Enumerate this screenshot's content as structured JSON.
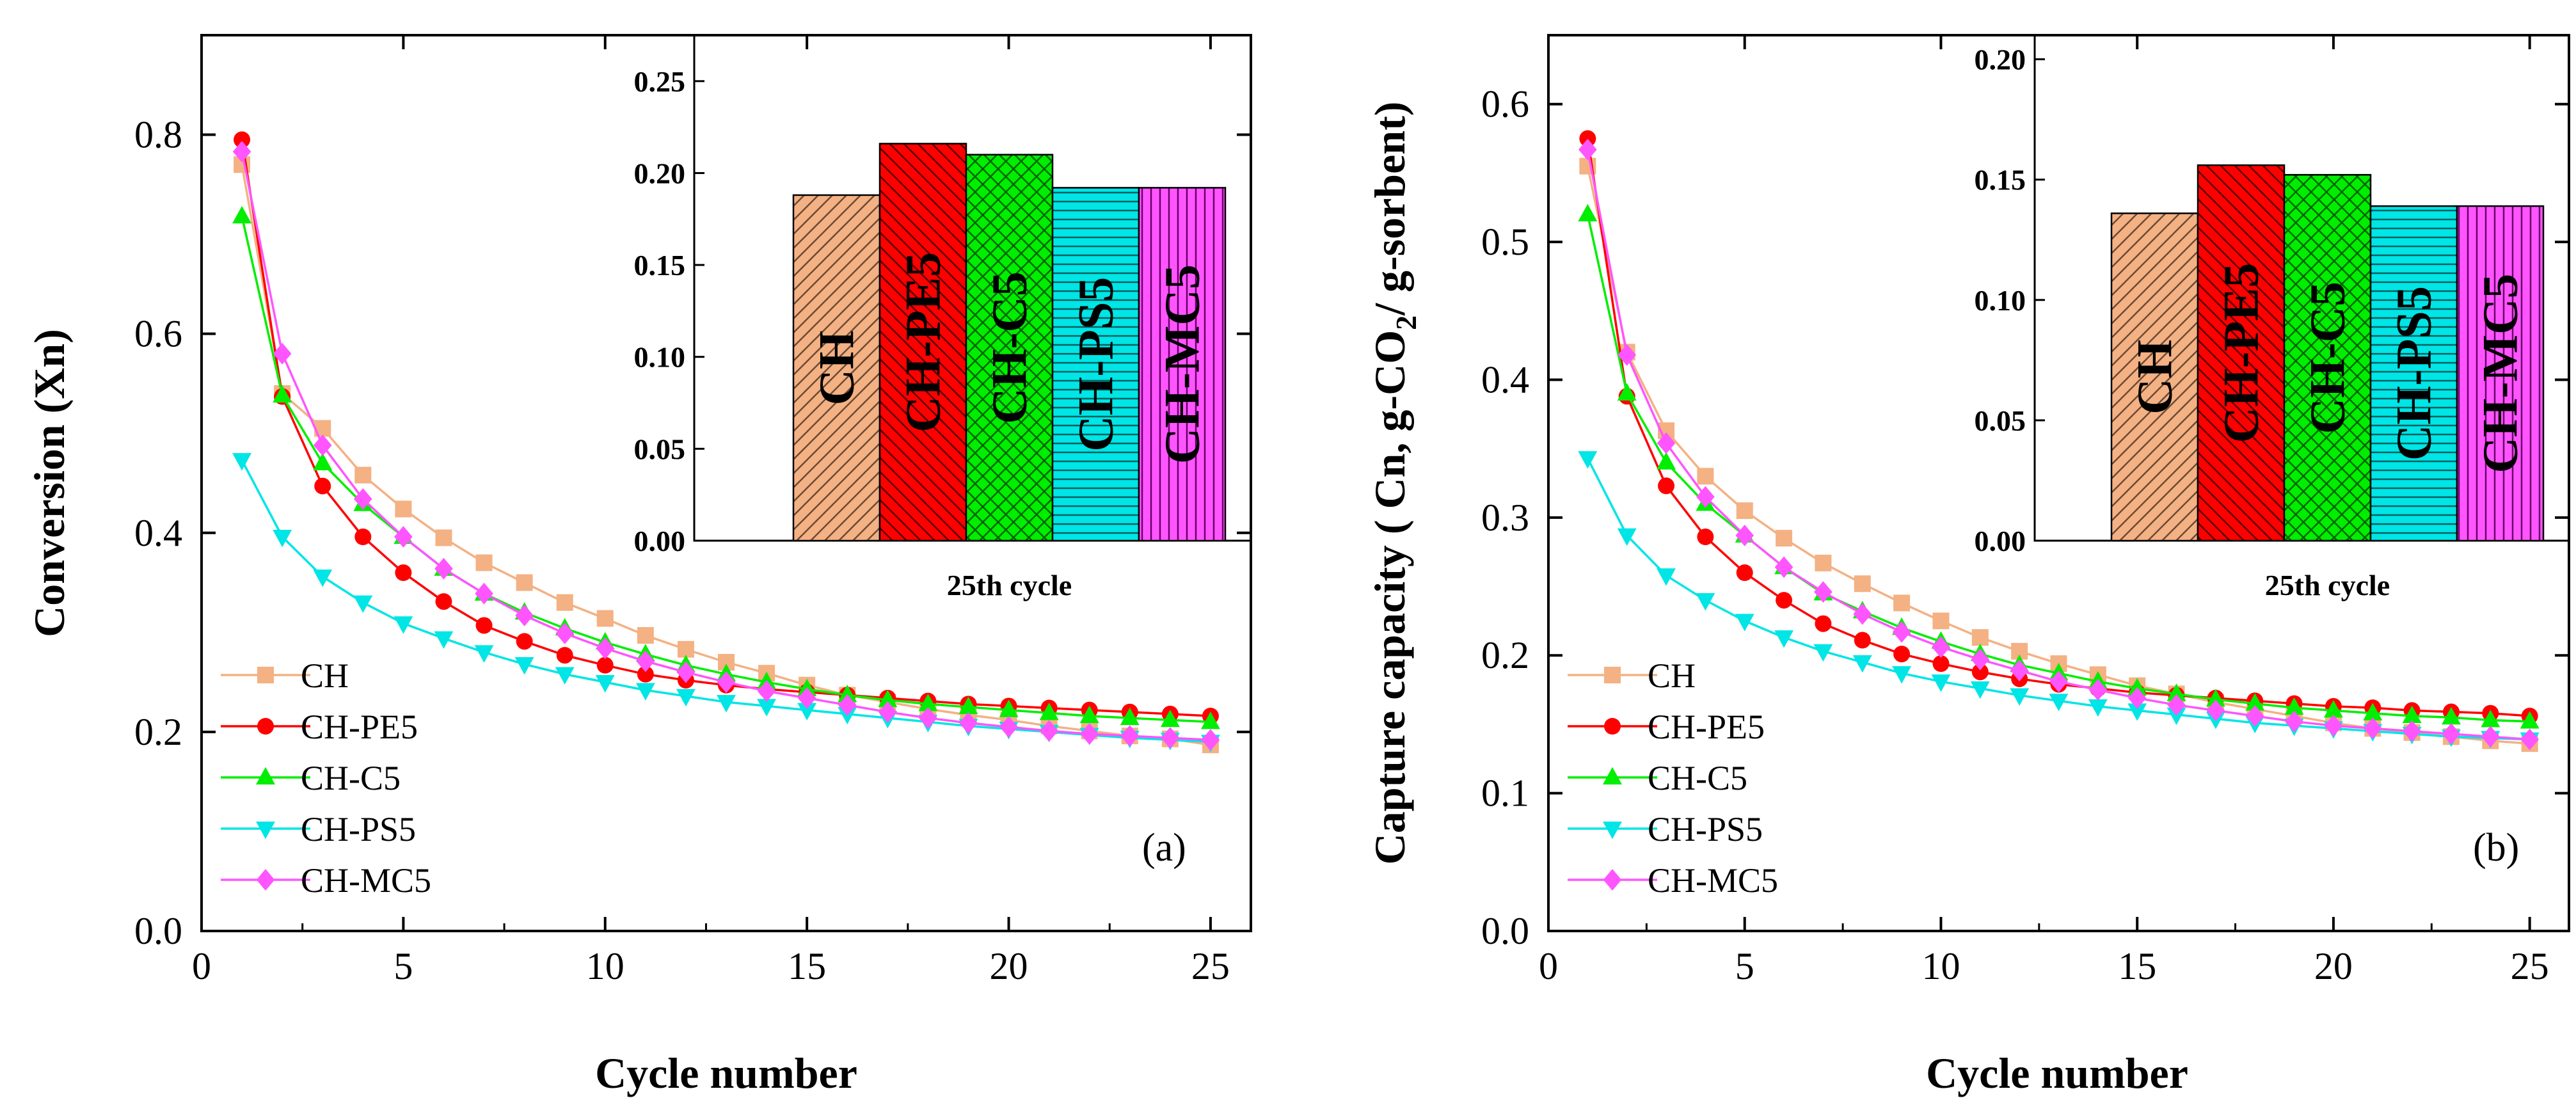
{
  "chart_data": [
    {
      "panel": "a",
      "panel_label": "(a)",
      "type": "line",
      "xlabel": "Cycle number",
      "ylabel": "Conversion (Xn)",
      "xlim": [
        0,
        26
      ],
      "ylim": [
        0.0,
        0.9
      ],
      "xticks": [
        0,
        5,
        10,
        15,
        20,
        25
      ],
      "yticks": [
        0.0,
        0.2,
        0.4,
        0.6,
        0.8
      ],
      "ytick_labels": [
        "0.0",
        "0.2",
        "0.4",
        "0.6",
        "0.8"
      ],
      "legend_position": "bottom-left",
      "x": [
        1,
        2,
        3,
        4,
        5,
        6,
        7,
        8,
        9,
        10,
        11,
        12,
        13,
        14,
        15,
        16,
        17,
        18,
        19,
        20,
        21,
        22,
        23,
        24,
        25
      ],
      "series": [
        {
          "name": "CH",
          "color": "#f4b183",
          "marker": "square",
          "values": [
            0.77,
            0.54,
            0.505,
            0.458,
            0.424,
            0.395,
            0.37,
            0.35,
            0.33,
            0.314,
            0.297,
            0.283,
            0.27,
            0.259,
            0.247,
            0.237,
            0.23,
            0.223,
            0.217,
            0.212,
            0.206,
            0.201,
            0.196,
            0.193,
            0.187
          ]
        },
        {
          "name": "CH-PE5",
          "color": "#ff0000",
          "marker": "circle",
          "values": [
            0.795,
            0.537,
            0.447,
            0.396,
            0.36,
            0.331,
            0.307,
            0.291,
            0.277,
            0.267,
            0.258,
            0.252,
            0.247,
            0.243,
            0.24,
            0.237,
            0.234,
            0.231,
            0.228,
            0.226,
            0.224,
            0.222,
            0.22,
            0.218,
            0.216
          ]
        },
        {
          "name": "CH-C5",
          "color": "#00ee00",
          "marker": "triangle-up",
          "values": [
            0.718,
            0.538,
            0.47,
            0.429,
            0.396,
            0.364,
            0.339,
            0.32,
            0.304,
            0.29,
            0.278,
            0.267,
            0.258,
            0.25,
            0.243,
            0.237,
            0.232,
            0.228,
            0.225,
            0.222,
            0.219,
            0.216,
            0.214,
            0.212,
            0.21
          ]
        },
        {
          "name": "CH-PS5",
          "color": "#00e5e5",
          "marker": "triangle-down",
          "values": [
            0.473,
            0.396,
            0.356,
            0.33,
            0.309,
            0.294,
            0.28,
            0.268,
            0.258,
            0.25,
            0.242,
            0.236,
            0.23,
            0.226,
            0.222,
            0.218,
            0.214,
            0.21,
            0.206,
            0.203,
            0.2,
            0.197,
            0.194,
            0.192,
            0.19
          ]
        },
        {
          "name": "CH-MC5",
          "color": "#ff55ff",
          "marker": "diamond",
          "values": [
            0.783,
            0.58,
            0.488,
            0.434,
            0.396,
            0.364,
            0.339,
            0.317,
            0.299,
            0.284,
            0.271,
            0.26,
            0.25,
            0.241,
            0.234,
            0.227,
            0.22,
            0.214,
            0.209,
            0.205,
            0.201,
            0.198,
            0.196,
            0.194,
            0.192
          ]
        }
      ],
      "inset": {
        "type": "bar",
        "caption": "25th cycle",
        "ylim": [
          0.0,
          0.275
        ],
        "yticks": [
          0.0,
          0.05,
          0.1,
          0.15,
          0.2,
          0.25
        ],
        "ytick_labels": [
          "0.00",
          "0.05",
          "0.10",
          "0.15",
          "0.20",
          "0.25"
        ],
        "categories": [
          "CH",
          "CH-PE5",
          "CH-C5",
          "CH-PS5",
          "CH-MC5"
        ],
        "values": [
          0.188,
          0.216,
          0.21,
          0.192,
          0.192
        ],
        "colors": [
          "#f4b183",
          "#ff0000",
          "#00ee00",
          "#00e5e5",
          "#ff55ff"
        ],
        "patterns": [
          "diag-left",
          "diag-right",
          "cross",
          "horizontal",
          "vertical"
        ]
      }
    },
    {
      "panel": "b",
      "panel_label": "(b)",
      "type": "line",
      "xlabel": "Cycle number",
      "ylabel_parts": [
        "Capture capacity ( Cn, g-CO",
        "2",
        "/ g-sorbent)"
      ],
      "xlim": [
        0,
        26
      ],
      "ylim": [
        0.0,
        0.65
      ],
      "xticks": [
        0,
        5,
        10,
        15,
        20,
        25
      ],
      "yticks": [
        0.0,
        0.1,
        0.2,
        0.3,
        0.4,
        0.5,
        0.6
      ],
      "ytick_labels": [
        "0.0",
        "0.1",
        "0.2",
        "0.3",
        "0.4",
        "0.5",
        "0.6"
      ],
      "legend_position": "bottom-left",
      "x": [
        1,
        2,
        3,
        4,
        5,
        6,
        7,
        8,
        9,
        10,
        11,
        12,
        13,
        14,
        15,
        16,
        17,
        18,
        19,
        20,
        21,
        22,
        23,
        24,
        25
      ],
      "series": [
        {
          "name": "CH",
          "color": "#f4b183",
          "marker": "square",
          "values": [
            0.555,
            0.42,
            0.363,
            0.33,
            0.305,
            0.285,
            0.267,
            0.252,
            0.238,
            0.225,
            0.213,
            0.203,
            0.194,
            0.186,
            0.178,
            0.172,
            0.166,
            0.161,
            0.156,
            0.151,
            0.147,
            0.144,
            0.141,
            0.138,
            0.136
          ]
        },
        {
          "name": "CH-PE5",
          "color": "#ff0000",
          "marker": "circle",
          "values": [
            0.575,
            0.388,
            0.323,
            0.286,
            0.26,
            0.24,
            0.223,
            0.211,
            0.201,
            0.194,
            0.188,
            0.183,
            0.179,
            0.176,
            0.173,
            0.171,
            0.169,
            0.167,
            0.165,
            0.163,
            0.162,
            0.16,
            0.159,
            0.158,
            0.156
          ]
        },
        {
          "name": "CH-C5",
          "color": "#00ee00",
          "marker": "triangle-up",
          "values": [
            0.52,
            0.39,
            0.34,
            0.31,
            0.287,
            0.264,
            0.245,
            0.232,
            0.22,
            0.21,
            0.201,
            0.193,
            0.187,
            0.181,
            0.176,
            0.172,
            0.168,
            0.165,
            0.162,
            0.16,
            0.158,
            0.156,
            0.155,
            0.153,
            0.152
          ]
        },
        {
          "name": "CH-PS5",
          "color": "#00e5e5",
          "marker": "triangle-down",
          "values": [
            0.343,
            0.287,
            0.258,
            0.24,
            0.225,
            0.213,
            0.203,
            0.195,
            0.187,
            0.181,
            0.176,
            0.171,
            0.167,
            0.163,
            0.16,
            0.157,
            0.154,
            0.151,
            0.149,
            0.147,
            0.145,
            0.143,
            0.141,
            0.14,
            0.139
          ]
        },
        {
          "name": "CH-MC5",
          "color": "#ff55ff",
          "marker": "diamond",
          "values": [
            0.567,
            0.418,
            0.354,
            0.315,
            0.287,
            0.264,
            0.246,
            0.23,
            0.217,
            0.206,
            0.197,
            0.189,
            0.181,
            0.175,
            0.169,
            0.164,
            0.16,
            0.156,
            0.152,
            0.149,
            0.147,
            0.145,
            0.143,
            0.141,
            0.139
          ]
        }
      ],
      "inset": {
        "type": "bar",
        "caption": "25th cycle",
        "ylim": [
          0.0,
          0.21
        ],
        "yticks": [
          0.0,
          0.05,
          0.1,
          0.15,
          0.2
        ],
        "ytick_labels": [
          "0.00",
          "0.05",
          "0.10",
          "0.15",
          "0.20"
        ],
        "categories": [
          "CH",
          "CH-PE5",
          "CH-C5",
          "CH-PS5",
          "CH-MC5"
        ],
        "values": [
          0.136,
          0.156,
          0.152,
          0.139,
          0.139
        ],
        "colors": [
          "#f4b183",
          "#ff0000",
          "#00ee00",
          "#00e5e5",
          "#ff55ff"
        ],
        "patterns": [
          "diag-left",
          "diag-right",
          "cross",
          "horizontal",
          "vertical"
        ]
      }
    }
  ]
}
